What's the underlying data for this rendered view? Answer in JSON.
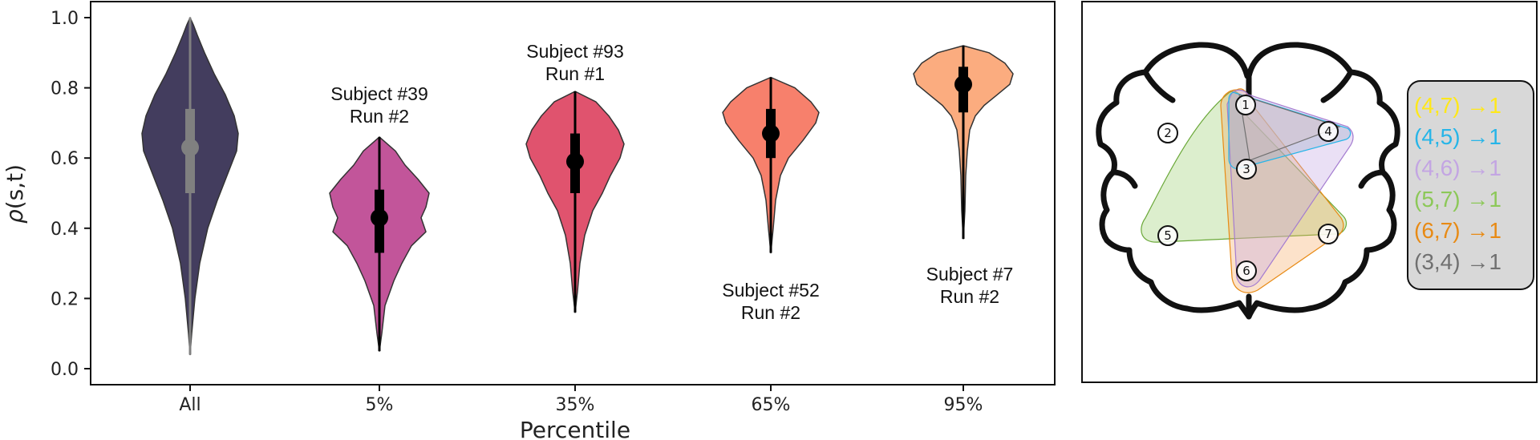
{
  "chart_data": {
    "type": "violin",
    "xlabel": "Percentile",
    "ylabel_prefix": "ρ",
    "ylabel_args": "(s,t)",
    "ylim": [
      0.0,
      1.0
    ],
    "yticks": [
      "0.0",
      "0.2",
      "0.4",
      "0.6",
      "0.8",
      "1.0"
    ],
    "categories": [
      "All",
      "5%",
      "35%",
      "65%",
      "95%"
    ],
    "grid": false,
    "violins": [
      {
        "label": "All",
        "color": "#433d5e",
        "median": 0.63,
        "q1": 0.5,
        "q3": 0.74,
        "min": 0.04,
        "max": 1.0
      },
      {
        "label": "5%",
        "color": "#c2559a",
        "median": 0.43,
        "q1": 0.33,
        "q3": 0.51,
        "min": 0.05,
        "max": 0.66
      },
      {
        "label": "35%",
        "color": "#e0536e",
        "median": 0.59,
        "q1": 0.5,
        "q3": 0.67,
        "min": 0.16,
        "max": 0.79
      },
      {
        "label": "65%",
        "color": "#f7806c",
        "median": 0.67,
        "q1": 0.6,
        "q3": 0.74,
        "min": 0.33,
        "max": 0.83
      },
      {
        "label": "95%",
        "color": "#fbac7f",
        "median": 0.81,
        "q1": 0.73,
        "q3": 0.86,
        "min": 0.37,
        "max": 0.92
      }
    ],
    "annotations": [
      {
        "category": "5%",
        "lines": [
          "Subject #39",
          "Run #2"
        ]
      },
      {
        "category": "35%",
        "lines": [
          "Subject #93",
          "Run #1"
        ]
      },
      {
        "category": "65%",
        "lines": [
          "Subject #52",
          "Run #2"
        ]
      },
      {
        "category": "95%",
        "lines": [
          "Subject #7",
          "Run #2"
        ]
      }
    ]
  },
  "network_panel": {
    "nodes": [
      "1",
      "2",
      "3",
      "4",
      "5",
      "6",
      "7"
    ],
    "legend": [
      {
        "text": "(4,7) →1",
        "color": "#ffe81a"
      },
      {
        "text": "(4,5) →1",
        "color": "#26b5e8"
      },
      {
        "text": "(4,6) →1",
        "color": "#c3a5e3"
      },
      {
        "text": "(5,7) →1",
        "color": "#8cc858"
      },
      {
        "text": "(6,7) →1",
        "color": "#e88a14"
      },
      {
        "text": "(3,4) →1",
        "color": "#707070"
      }
    ]
  }
}
